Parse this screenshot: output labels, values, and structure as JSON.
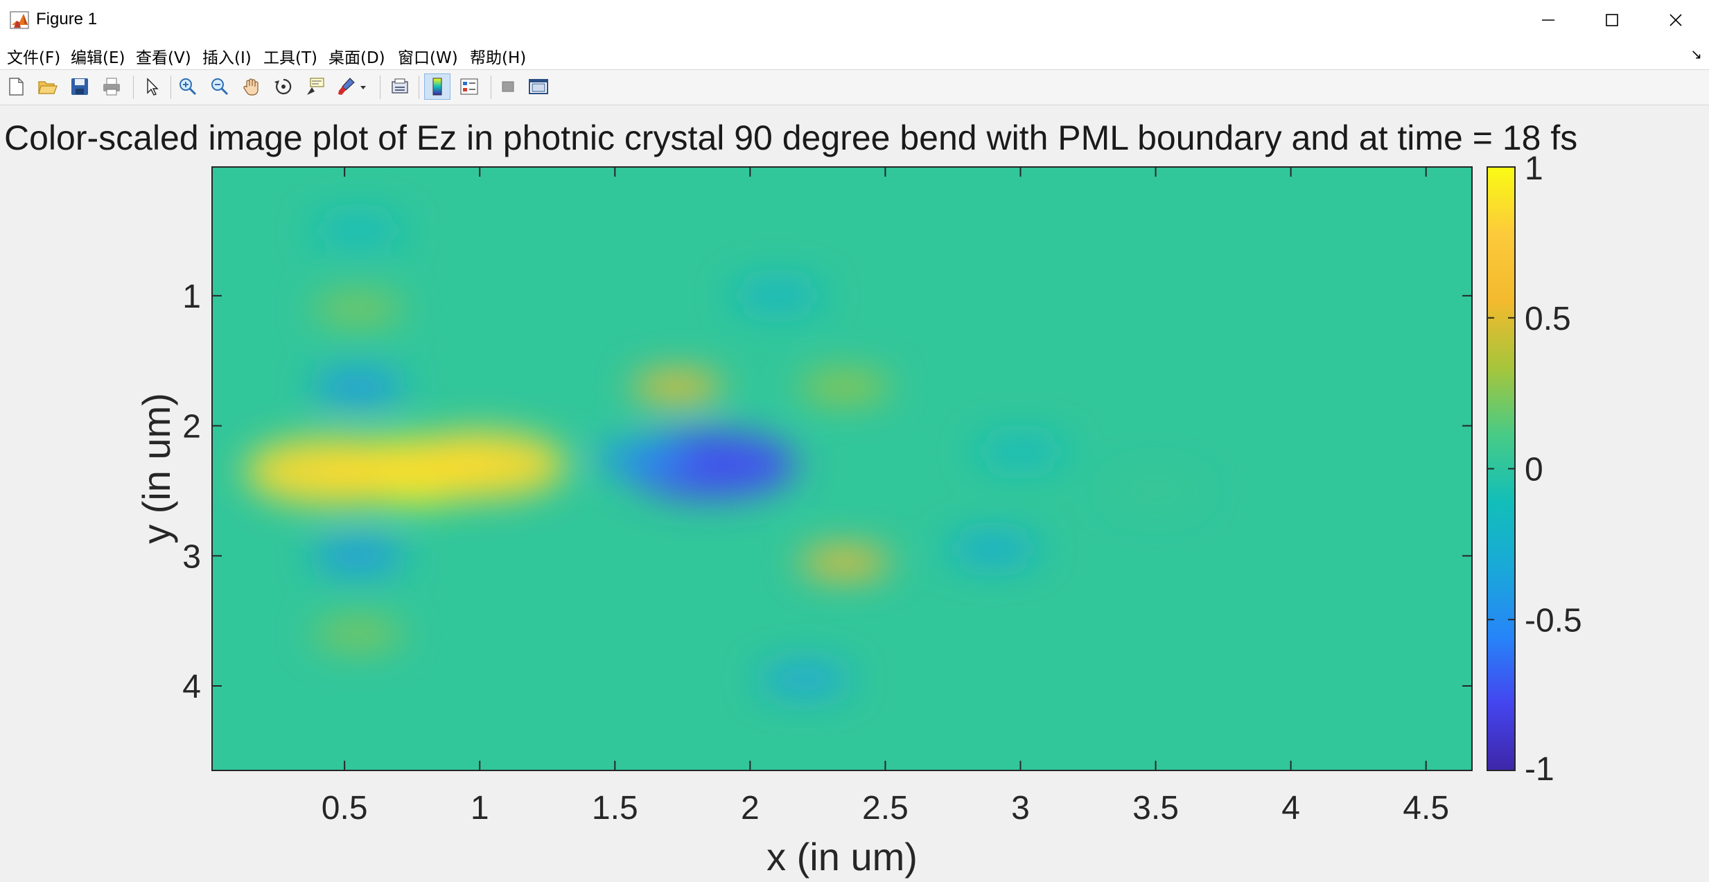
{
  "window": {
    "title": "Figure 1",
    "controls": [
      "minimize",
      "maximize",
      "close"
    ]
  },
  "menubar": {
    "items": [
      "文件(F)",
      "编辑(E)",
      "查看(V)",
      "插入(I)",
      "工具(T)",
      "桌面(D)",
      "窗口(W)",
      "帮助(H)"
    ]
  },
  "toolbar": {
    "buttons": [
      {
        "name": "new-figure",
        "icon": "new-file-icon"
      },
      {
        "name": "open-file",
        "icon": "folder-open-icon"
      },
      {
        "name": "save-figure",
        "icon": "save-icon"
      },
      {
        "name": "print-figure",
        "icon": "printer-icon"
      },
      {
        "name": "edit-plot",
        "icon": "pointer-arrow-icon"
      },
      {
        "name": "zoom-in",
        "icon": "zoom-in-icon"
      },
      {
        "name": "zoom-out",
        "icon": "zoom-out-icon"
      },
      {
        "name": "pan",
        "icon": "hand-icon"
      },
      {
        "name": "rotate-3d",
        "icon": "rotate-icon"
      },
      {
        "name": "data-cursor",
        "icon": "data-tip-icon"
      },
      {
        "name": "brush",
        "icon": "brush-icon"
      },
      {
        "name": "link-plot",
        "icon": "link-plot-icon"
      },
      {
        "name": "insert-colorbar",
        "icon": "colorbar-icon"
      },
      {
        "name": "insert-legend",
        "icon": "legend-icon"
      },
      {
        "name": "hide-plot-tools",
        "icon": "hide-tools-icon"
      },
      {
        "name": "show-plot-tools",
        "icon": "show-tools-icon"
      }
    ]
  },
  "chart_data": {
    "type": "heatmap",
    "title": "Color-scaled image plot of Ez in photnic crystal 90 degree bend with PML boundary and at time = 18 fs",
    "xlabel": "x (in um)",
    "ylabel": "y (in um)",
    "xlim": [
      0.01,
      4.67
    ],
    "ylim": [
      0.01,
      4.65
    ],
    "y_direction": "reversed",
    "x_ticks": [
      "0.5",
      "1",
      "1.5",
      "2",
      "2.5",
      "3",
      "3.5",
      "4",
      "4.5"
    ],
    "y_ticks": [
      "1",
      "2",
      "3",
      "4"
    ],
    "colorbar": {
      "limits": [
        -1,
        1
      ],
      "ticks": [
        "1",
        "0.5",
        "0",
        "-0.5",
        "-1"
      ],
      "colormap": "parula",
      "colors": [
        "#3e26a8",
        "#4445ef",
        "#2685f8",
        "#1aa8d9",
        "#12beb9",
        "#48cb86",
        "#a6c53b",
        "#f3ba2e",
        "#fcca3a",
        "#f9fb15"
      ]
    },
    "field_features": [
      {
        "x": 0.75,
        "y": 2.35,
        "value": 0.98
      },
      {
        "x": 0.45,
        "y": 2.35,
        "value": 0.85
      },
      {
        "x": 1.0,
        "y": 2.3,
        "value": 0.85
      },
      {
        "x": 0.55,
        "y": 1.1,
        "value": 0.25
      },
      {
        "x": 0.55,
        "y": 1.7,
        "value": -0.45
      },
      {
        "x": 0.55,
        "y": 3.0,
        "value": -0.45
      },
      {
        "x": 0.55,
        "y": 3.6,
        "value": 0.25
      },
      {
        "x": 0.55,
        "y": 0.5,
        "value": -0.15
      },
      {
        "x": 1.85,
        "y": 2.3,
        "value": -0.75
      },
      {
        "x": 1.6,
        "y": 2.25,
        "value": -0.5
      },
      {
        "x": 1.73,
        "y": 1.7,
        "value": 0.55
      },
      {
        "x": 2.35,
        "y": 3.05,
        "value": 0.55
      },
      {
        "x": 2.35,
        "y": 1.7,
        "value": 0.3
      },
      {
        "x": 2.2,
        "y": 3.95,
        "value": -0.35
      },
      {
        "x": 2.1,
        "y": 1.0,
        "value": -0.2
      },
      {
        "x": 2.9,
        "y": 2.95,
        "value": -0.3
      },
      {
        "x": 3.0,
        "y": 2.2,
        "value": -0.15
      },
      {
        "x": 3.5,
        "y": 2.5,
        "value": 0.05
      }
    ]
  }
}
